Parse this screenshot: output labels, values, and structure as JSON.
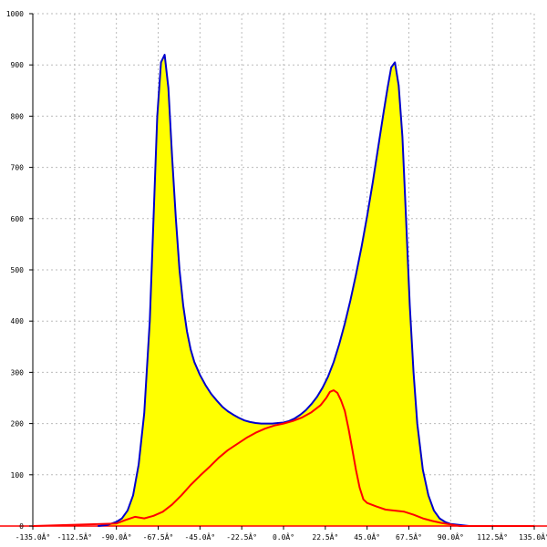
{
  "chart_data": {
    "type": "area",
    "xlim": [
      -135,
      135
    ],
    "ylim": [
      0,
      1000
    ],
    "grid": true,
    "x_ticks": [
      {
        "value": -135,
        "label": "-135.0Â°"
      },
      {
        "value": -112.5,
        "label": "-112.5Â°"
      },
      {
        "value": -90,
        "label": "-90.0Â°"
      },
      {
        "value": -67.5,
        "label": "-67.5Â°"
      },
      {
        "value": -45,
        "label": "-45.0Â°"
      },
      {
        "value": -22.5,
        "label": "-22.5Â°"
      },
      {
        "value": 0,
        "label": "0.0Â°"
      },
      {
        "value": 22.5,
        "label": "22.5Â°"
      },
      {
        "value": 45,
        "label": "45.0Â°"
      },
      {
        "value": 67.5,
        "label": "67.5Â°"
      },
      {
        "value": 90,
        "label": "90.0Â°"
      },
      {
        "value": 112.5,
        "label": "112.5Â°"
      },
      {
        "value": 135,
        "label": "135.0Â°"
      }
    ],
    "y_ticks": [
      {
        "value": 0,
        "label": "0"
      },
      {
        "value": 100,
        "label": "100"
      },
      {
        "value": 200,
        "label": "200"
      },
      {
        "value": 300,
        "label": "300"
      },
      {
        "value": 400,
        "label": "400"
      },
      {
        "value": 500,
        "label": "500"
      },
      {
        "value": 600,
        "label": "600"
      },
      {
        "value": 700,
        "label": "700"
      },
      {
        "value": 800,
        "label": "800"
      },
      {
        "value": 900,
        "label": "900"
      },
      {
        "value": 1000,
        "label": "1000"
      }
    ],
    "series": [
      {
        "color": "#0000cc",
        "fill": "#ffff00",
        "x": [
          -100,
          -95,
          -90,
          -87,
          -84,
          -81,
          -78,
          -75,
          -72,
          -70,
          -68,
          -66,
          -64,
          -62,
          -60,
          -58,
          -56,
          -54,
          -52,
          -50,
          -48,
          -45,
          -42,
          -39,
          -36,
          -33,
          -30,
          -27,
          -24,
          -21,
          -18,
          -15,
          -12,
          -9,
          -6,
          -3,
          0,
          3,
          6,
          9,
          12,
          15,
          18,
          21,
          24,
          27,
          30,
          33,
          36,
          39,
          42,
          45,
          48,
          51,
          54,
          56,
          58,
          60,
          62,
          64,
          66,
          68,
          70,
          72,
          75,
          78,
          81,
          84,
          87,
          90,
          95,
          100
        ],
        "y": [
          0,
          2,
          8,
          15,
          30,
          60,
          120,
          220,
          400,
          600,
          800,
          905,
          920,
          855,
          720,
          600,
          500,
          430,
          380,
          345,
          320,
          295,
          275,
          258,
          245,
          233,
          224,
          217,
          211,
          206,
          203,
          201,
          200,
          200,
          200,
          201,
          202,
          205,
          210,
          217,
          226,
          238,
          252,
          270,
          292,
          320,
          355,
          395,
          440,
          490,
          545,
          605,
          670,
          740,
          810,
          855,
          895,
          905,
          860,
          760,
          600,
          430,
          300,
          200,
          110,
          60,
          30,
          15,
          8,
          4,
          2,
          0
        ]
      },
      {
        "color": "#ff0000",
        "x": [
          -135,
          -90,
          -85,
          -80,
          -75,
          -70,
          -65,
          -60,
          -55,
          -50,
          -45,
          -40,
          -35,
          -30,
          -25,
          -20,
          -15,
          -10,
          -5,
          0,
          5,
          10,
          15,
          20,
          23,
          25,
          27,
          29,
          31,
          33,
          35,
          37,
          39,
          41,
          43,
          45,
          50,
          55,
          60,
          65,
          70,
          75,
          80,
          85,
          90,
          95,
          135
        ],
        "y": [
          0,
          5,
          12,
          18,
          15,
          20,
          28,
          42,
          60,
          80,
          98,
          115,
          133,
          148,
          160,
          172,
          182,
          190,
          196,
          200,
          205,
          212,
          222,
          236,
          250,
          262,
          265,
          260,
          245,
          225,
          190,
          150,
          110,
          75,
          52,
          45,
          38,
          32,
          30,
          28,
          22,
          15,
          10,
          6,
          3,
          0,
          0
        ]
      }
    ]
  }
}
